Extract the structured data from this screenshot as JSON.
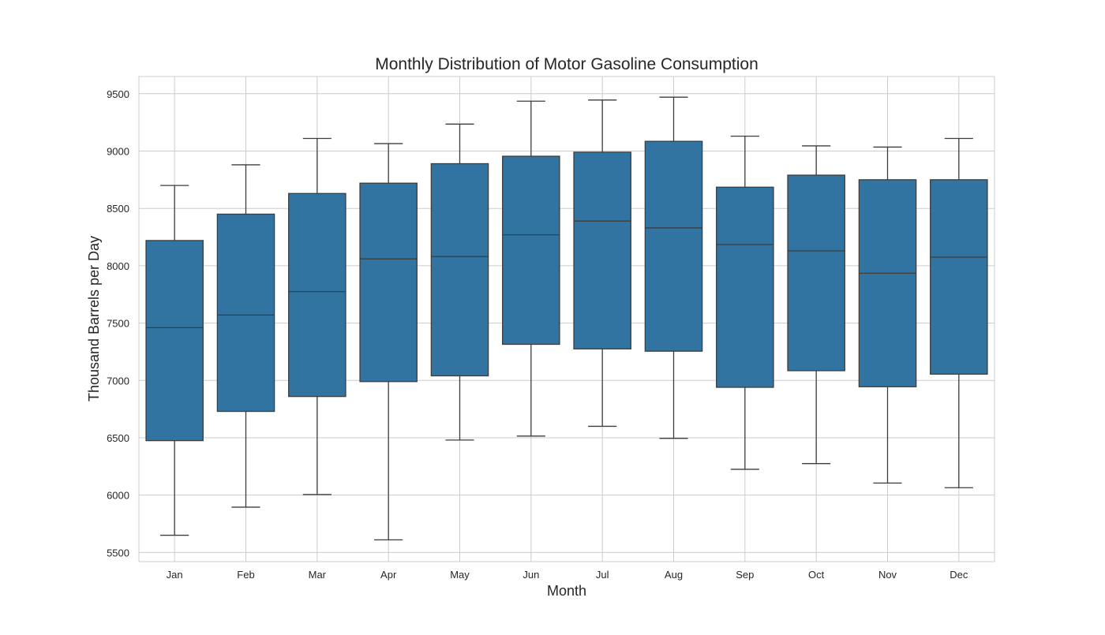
{
  "chart_data": {
    "type": "boxplot",
    "title": "Monthly Distribution of Motor Gasoline Consumption",
    "xlabel": "Month",
    "ylabel": "Thousand Barrels per Day",
    "ylim": [
      5420,
      9650
    ],
    "yticks": [
      5500,
      6000,
      6500,
      7000,
      7500,
      8000,
      8500,
      9000,
      9500
    ],
    "grid": true,
    "colors": {
      "box_fill": "#3274a1",
      "box_edge": "#3d3d3d",
      "grid": "#cccccc",
      "frame": "#cccccc",
      "text": "#262626"
    },
    "categories": [
      "Jan",
      "Feb",
      "Mar",
      "Apr",
      "May",
      "Jun",
      "Jul",
      "Aug",
      "Sep",
      "Oct",
      "Nov",
      "Dec"
    ],
    "boxes": [
      {
        "category": "Jan",
        "whisker_low": 5650,
        "q1": 6475,
        "median": 7460,
        "q3": 8220,
        "whisker_high": 8700
      },
      {
        "category": "Feb",
        "whisker_low": 5895,
        "q1": 6730,
        "median": 7570,
        "q3": 8450,
        "whisker_high": 8880
      },
      {
        "category": "Mar",
        "whisker_low": 6005,
        "q1": 6860,
        "median": 7775,
        "q3": 8630,
        "whisker_high": 9110
      },
      {
        "category": "Apr",
        "whisker_low": 5610,
        "q1": 6990,
        "median": 8060,
        "q3": 8720,
        "whisker_high": 9065
      },
      {
        "category": "May",
        "whisker_low": 6480,
        "q1": 7040,
        "median": 8080,
        "q3": 8890,
        "whisker_high": 9235
      },
      {
        "category": "Jun",
        "whisker_low": 6515,
        "q1": 7315,
        "median": 8270,
        "q3": 8955,
        "whisker_high": 9435
      },
      {
        "category": "Jul",
        "whisker_low": 6600,
        "q1": 7275,
        "median": 8390,
        "q3": 8990,
        "whisker_high": 9445
      },
      {
        "category": "Aug",
        "whisker_low": 6495,
        "q1": 7255,
        "median": 8330,
        "q3": 9085,
        "whisker_high": 9470
      },
      {
        "category": "Sep",
        "whisker_low": 6225,
        "q1": 6940,
        "median": 8185,
        "q3": 8685,
        "whisker_high": 9130
      },
      {
        "category": "Oct",
        "whisker_low": 6275,
        "q1": 7085,
        "median": 8130,
        "q3": 8790,
        "whisker_high": 9045
      },
      {
        "category": "Nov",
        "whisker_low": 6105,
        "q1": 6945,
        "median": 7935,
        "q3": 8750,
        "whisker_high": 9035
      },
      {
        "category": "Dec",
        "whisker_low": 6065,
        "q1": 7055,
        "median": 8075,
        "q3": 8750,
        "whisker_high": 9110
      }
    ]
  }
}
